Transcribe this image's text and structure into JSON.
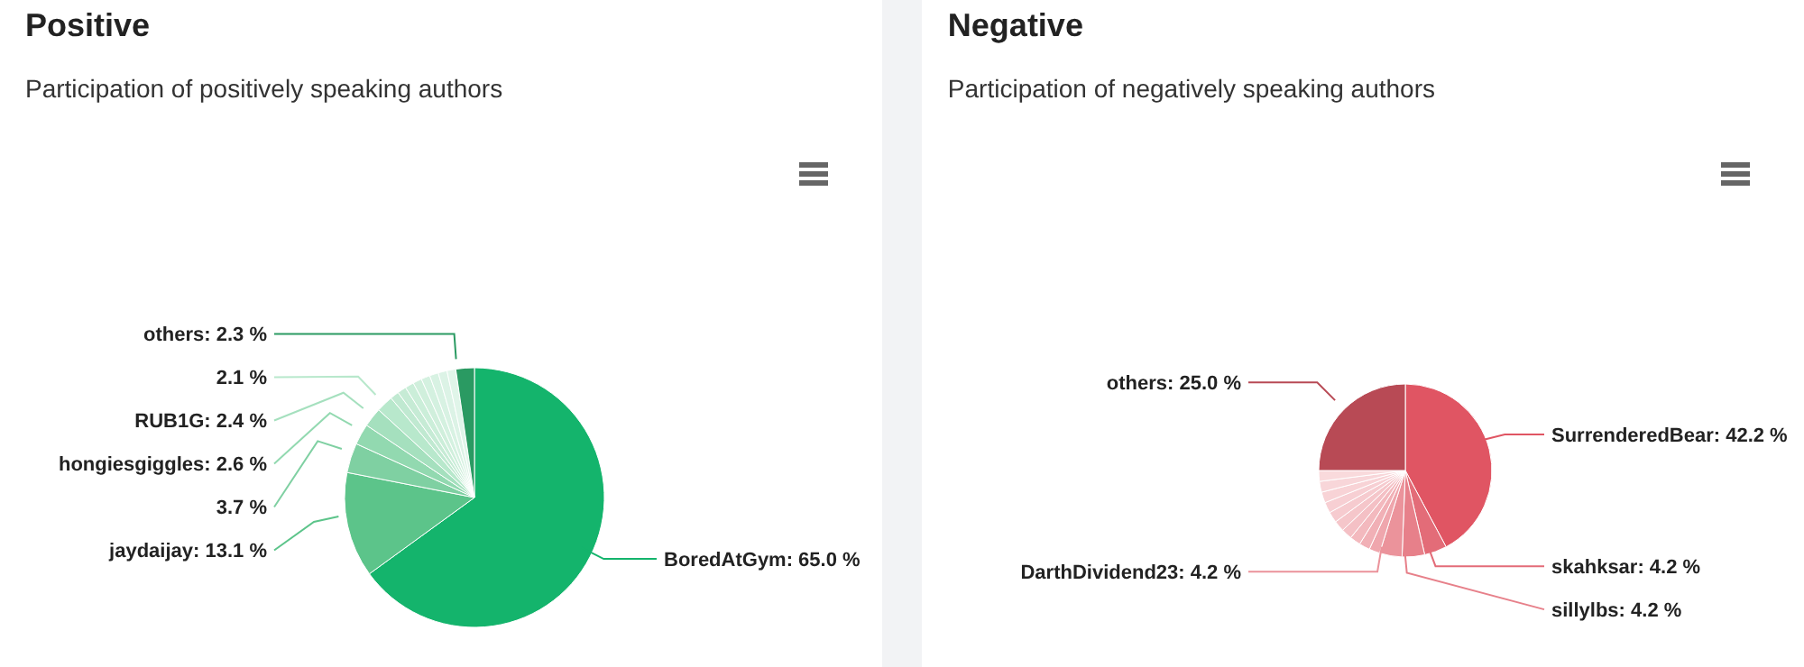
{
  "chart_data": [
    {
      "type": "pie",
      "title": "Positive",
      "subtitle": "Participation of positively speaking authors",
      "categories": [
        "BoredAtGym",
        "jaydaijay",
        null,
        "hongiesgiggles",
        "RUB1G",
        null,
        null,
        null,
        null,
        null,
        null,
        null,
        null,
        null,
        "others"
      ],
      "values": [
        65.0,
        13.1,
        3.7,
        2.6,
        2.4,
        2.1,
        1.1,
        1.1,
        1.1,
        1.1,
        1.1,
        1.1,
        1.1,
        1.1,
        2.3
      ],
      "value_labels": [
        "65.0 %",
        "13.1 %",
        "3.7 %",
        "2.6 %",
        "2.4 %",
        "2.1 %",
        null,
        null,
        null,
        null,
        null,
        null,
        null,
        null,
        "2.3 %"
      ],
      "colors": [
        "#14b46c",
        "#5cc48a",
        "#7fd0a2",
        "#92d9b0",
        "#a5e0be",
        "#b8e8cc",
        "#c0e9d1",
        "#c6ebd5",
        "#cbeed9",
        "#d0efdc",
        "#d4f1e0",
        "#d8f2e3",
        "#dcf3e6",
        "#e0f5e9",
        "#2a9a62"
      ]
    },
    {
      "type": "pie",
      "title": "Negative",
      "subtitle": "Participation of negatively speaking authors",
      "categories": [
        "SurrenderedBear",
        "skahksar",
        "sillylbs",
        "DarthDividend23",
        null,
        null,
        null,
        null,
        null,
        null,
        null,
        null,
        null,
        null,
        "others"
      ],
      "values": [
        42.2,
        4.2,
        4.2,
        4.2,
        2.02,
        2.02,
        2.02,
        2.02,
        2.02,
        2.02,
        2.02,
        2.02,
        2.02,
        2.02,
        25.0
      ],
      "value_labels": [
        "42.2 %",
        "4.2 %",
        "4.2 %",
        "4.2 %",
        null,
        null,
        null,
        null,
        null,
        null,
        null,
        null,
        null,
        null,
        "25.0 %"
      ],
      "colors": [
        "#e05563",
        "#e36c78",
        "#e7808a",
        "#eb939b",
        "#efa6ad",
        "#f1b0b6",
        "#f3b9be",
        "#f4c0c5",
        "#f5c6ca",
        "#f6cbcf",
        "#f7cfd3",
        "#f8d3d6",
        "#f8d6d9",
        "#f9dadc",
        "#b84a55"
      ]
    }
  ]
}
